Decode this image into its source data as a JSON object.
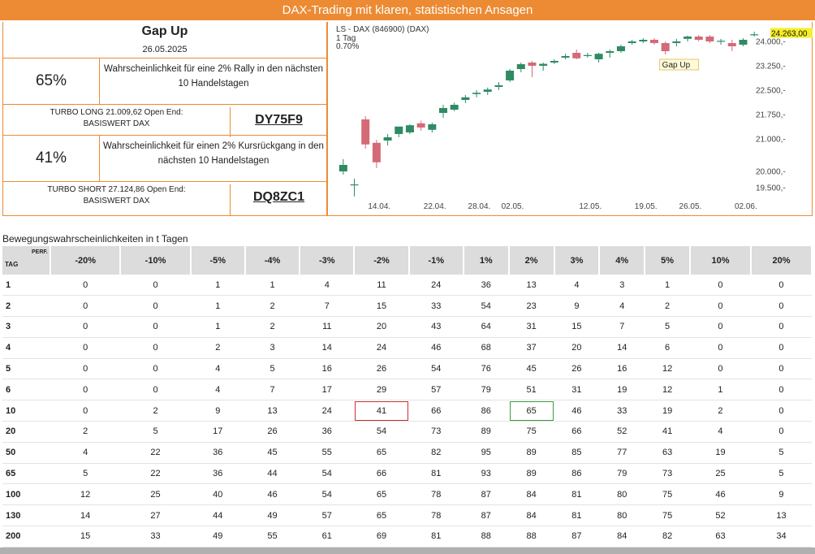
{
  "banner": "DAX-Trading mit klaren, statistischen Ansagen",
  "signal": {
    "title": "Gap Up",
    "date": "26.05.2025"
  },
  "rally": {
    "pct": "65%",
    "text": "Wahrscheinlichkeit für eine 2% Rally in den nächsten 10 Handelstagen"
  },
  "long": {
    "line1": "TURBO LONG 21.009,62 Open End:",
    "line2": "BASISWERT DAX",
    "code": "DY75F9"
  },
  "drop": {
    "pct": "41%",
    "text": "Wahrscheinlichkeit für einen 2% Kursrückgang in den nächsten 10 Handelstagen"
  },
  "short": {
    "line1": "TURBO SHORT 27.124,86 Open End:",
    "line2": "BASISWERT DAX",
    "code": "DQ8ZC1"
  },
  "chart_data": {
    "type": "candlestick",
    "title": "LS - DAX (846900) (DAX)",
    "subtitle": "1 Tag",
    "change": "0.70%",
    "last_price": "24.263,00",
    "annotation": "Gap Up",
    "x_ticks": [
      "14.04.",
      "22.04.",
      "28.04.",
      "02.05.",
      "12.05.",
      "19.05.",
      "26.05.",
      "02.06."
    ],
    "y_ticks": [
      "24.000,-",
      "23.250,-",
      "22.500,-",
      "21.750,-",
      "21.000,-",
      "20.000,-",
      "19.500,-"
    ],
    "ylim": [
      19300,
      24350
    ],
    "candles": [
      {
        "o": 20000,
        "h": 20380,
        "l": 19900,
        "c": 20200
      },
      {
        "o": 19580,
        "h": 19780,
        "l": 19230,
        "c": 19600
      },
      {
        "o": 21600,
        "h": 21700,
        "l": 20700,
        "c": 20830
      },
      {
        "o": 20880,
        "h": 20970,
        "l": 20100,
        "c": 20280
      },
      {
        "o": 20950,
        "h": 21150,
        "l": 20800,
        "c": 21050
      },
      {
        "o": 21150,
        "h": 21350,
        "l": 21050,
        "c": 21380
      },
      {
        "o": 21200,
        "h": 21450,
        "l": 21150,
        "c": 21420
      },
      {
        "o": 21480,
        "h": 21560,
        "l": 21250,
        "c": 21350
      },
      {
        "o": 21280,
        "h": 21500,
        "l": 21200,
        "c": 21450
      },
      {
        "o": 21800,
        "h": 22050,
        "l": 21650,
        "c": 21950
      },
      {
        "o": 21900,
        "h": 22120,
        "l": 21850,
        "c": 22050
      },
      {
        "o": 22200,
        "h": 22350,
        "l": 22100,
        "c": 22280
      },
      {
        "o": 22380,
        "h": 22500,
        "l": 22280,
        "c": 22420
      },
      {
        "o": 22450,
        "h": 22580,
        "l": 22350,
        "c": 22520
      },
      {
        "o": 22600,
        "h": 22750,
        "l": 22500,
        "c": 22650
      },
      {
        "o": 22800,
        "h": 23150,
        "l": 22750,
        "c": 23100
      },
      {
        "o": 23150,
        "h": 23350,
        "l": 23050,
        "c": 23300
      },
      {
        "o": 23350,
        "h": 23400,
        "l": 22900,
        "c": 23250
      },
      {
        "o": 23250,
        "h": 23350,
        "l": 23100,
        "c": 23310
      },
      {
        "o": 23350,
        "h": 23450,
        "l": 23300,
        "c": 23400
      },
      {
        "o": 23500,
        "h": 23620,
        "l": 23450,
        "c": 23550
      },
      {
        "o": 23650,
        "h": 23750,
        "l": 23450,
        "c": 23480
      },
      {
        "o": 23550,
        "h": 23650,
        "l": 23500,
        "c": 23580
      },
      {
        "o": 23450,
        "h": 23650,
        "l": 23350,
        "c": 23620
      },
      {
        "o": 23650,
        "h": 23750,
        "l": 23500,
        "c": 23700
      },
      {
        "o": 23700,
        "h": 23900,
        "l": 23650,
        "c": 23850
      },
      {
        "o": 23950,
        "h": 24050,
        "l": 23900,
        "c": 24000
      },
      {
        "o": 24000,
        "h": 24100,
        "l": 23950,
        "c": 24050
      },
      {
        "o": 24050,
        "h": 24100,
        "l": 23900,
        "c": 23950
      },
      {
        "o": 23950,
        "h": 24000,
        "l": 23600,
        "c": 23700
      },
      {
        "o": 23950,
        "h": 24080,
        "l": 23850,
        "c": 24000
      },
      {
        "o": 24080,
        "h": 24180,
        "l": 24000,
        "c": 24150
      },
      {
        "o": 24150,
        "h": 24200,
        "l": 24000,
        "c": 24050
      },
      {
        "o": 24150,
        "h": 24200,
        "l": 23950,
        "c": 24000
      },
      {
        "o": 24000,
        "h": 24080,
        "l": 23900,
        "c": 24020
      },
      {
        "o": 23950,
        "h": 24050,
        "l": 23700,
        "c": 23850
      },
      {
        "o": 23900,
        "h": 24100,
        "l": 23850,
        "c": 24050
      },
      {
        "o": 24200,
        "h": 24300,
        "l": 24150,
        "c": 24220
      }
    ]
  },
  "table": {
    "title": "Bewegungswahrscheinlichkeiten in t Tagen",
    "corner_tag": "TAG",
    "corner_perf": "PERF.",
    "headers": [
      "-20%",
      "-10%",
      "-5%",
      "-4%",
      "-3%",
      "-2%",
      "-1%",
      "1%",
      "2%",
      "3%",
      "4%",
      "5%",
      "10%",
      "20%"
    ],
    "rows": [
      {
        "tag": "1",
        "vals": [
          "0",
          "0",
          "1",
          "1",
          "4",
          "11",
          "24",
          "36",
          "13",
          "4",
          "3",
          "1",
          "0",
          "0"
        ]
      },
      {
        "tag": "2",
        "vals": [
          "0",
          "0",
          "1",
          "2",
          "7",
          "15",
          "33",
          "54",
          "23",
          "9",
          "4",
          "2",
          "0",
          "0"
        ]
      },
      {
        "tag": "3",
        "vals": [
          "0",
          "0",
          "1",
          "2",
          "11",
          "20",
          "43",
          "64",
          "31",
          "15",
          "7",
          "5",
          "0",
          "0"
        ]
      },
      {
        "tag": "4",
        "vals": [
          "0",
          "0",
          "2",
          "3",
          "14",
          "24",
          "46",
          "68",
          "37",
          "20",
          "14",
          "6",
          "0",
          "0"
        ]
      },
      {
        "tag": "5",
        "vals": [
          "0",
          "0",
          "4",
          "5",
          "16",
          "26",
          "54",
          "76",
          "45",
          "26",
          "16",
          "12",
          "0",
          "0"
        ]
      },
      {
        "tag": "6",
        "vals": [
          "0",
          "0",
          "4",
          "7",
          "17",
          "29",
          "57",
          "79",
          "51",
          "31",
          "19",
          "12",
          "1",
          "0"
        ]
      },
      {
        "tag": "10",
        "vals": [
          "0",
          "2",
          "9",
          "13",
          "24",
          "41",
          "66",
          "86",
          "65",
          "46",
          "33",
          "19",
          "2",
          "0"
        ]
      },
      {
        "tag": "20",
        "vals": [
          "2",
          "5",
          "17",
          "26",
          "36",
          "54",
          "73",
          "89",
          "75",
          "66",
          "52",
          "41",
          "4",
          "0"
        ]
      },
      {
        "tag": "50",
        "vals": [
          "4",
          "22",
          "36",
          "45",
          "55",
          "65",
          "82",
          "95",
          "89",
          "85",
          "77",
          "63",
          "19",
          "5"
        ]
      },
      {
        "tag": "65",
        "vals": [
          "5",
          "22",
          "36",
          "44",
          "54",
          "66",
          "81",
          "93",
          "89",
          "86",
          "79",
          "73",
          "25",
          "5"
        ]
      },
      {
        "tag": "100",
        "vals": [
          "12",
          "25",
          "40",
          "46",
          "54",
          "65",
          "78",
          "87",
          "84",
          "81",
          "80",
          "75",
          "46",
          "9"
        ]
      },
      {
        "tag": "130",
        "vals": [
          "14",
          "27",
          "44",
          "49",
          "57",
          "65",
          "78",
          "87",
          "84",
          "81",
          "80",
          "75",
          "52",
          "13"
        ]
      },
      {
        "tag": "200",
        "vals": [
          "15",
          "33",
          "49",
          "55",
          "61",
          "69",
          "81",
          "88",
          "88",
          "87",
          "84",
          "82",
          "63",
          "34"
        ]
      }
    ]
  }
}
